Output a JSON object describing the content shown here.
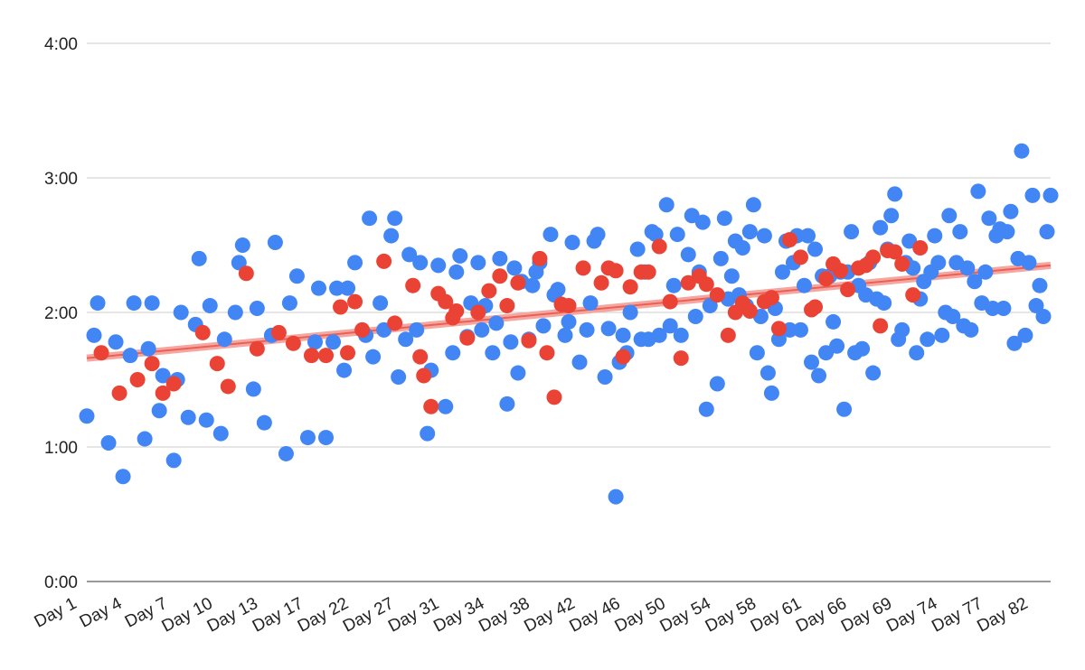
{
  "chart_data": {
    "type": "scatter",
    "title": "",
    "xlabel": "",
    "ylabel": "",
    "y_unit": "h:mm",
    "y_ticks": [
      "0:00",
      "1:00",
      "2:00",
      "3:00",
      "4:00"
    ],
    "y_tick_values": [
      0,
      1,
      2,
      3,
      4
    ],
    "ylim": [
      0,
      4
    ],
    "grid": true,
    "legend": "none",
    "x_tick_labels": [
      "Day 1",
      "Day 4",
      "Day 7",
      "Day 10",
      "Day 13",
      "Day 17",
      "Day 22",
      "Day 27",
      "Day 31",
      "Day 34",
      "Day 38",
      "Day 42",
      "Day 46",
      "Day 50",
      "Day 54",
      "Day 58",
      "Day 61",
      "Day 66",
      "Day 69",
      "Day 74",
      "Day 77",
      "Day 82"
    ],
    "x_count": 120,
    "series": [
      {
        "color": "#4285f4",
        "points": [
          [
            0,
            1.23
          ],
          [
            1,
            1.83
          ],
          [
            1.5,
            2.07
          ],
          [
            3,
            1.03
          ],
          [
            4,
            1.78
          ],
          [
            5,
            0.78
          ],
          [
            6,
            1.68
          ],
          [
            6.5,
            2.07
          ],
          [
            8,
            1.06
          ],
          [
            8.5,
            1.73
          ],
          [
            9,
            2.07
          ],
          [
            10,
            1.27
          ],
          [
            10.5,
            1.53
          ],
          [
            12,
            0.9
          ],
          [
            12.5,
            1.5
          ],
          [
            13,
            2.0
          ],
          [
            14,
            1.22
          ],
          [
            15,
            1.91
          ],
          [
            15.5,
            2.4
          ],
          [
            16.5,
            1.2
          ],
          [
            17,
            2.05
          ],
          [
            18.5,
            1.1
          ],
          [
            19,
            1.8
          ],
          [
            20.5,
            2.0
          ],
          [
            21,
            2.37
          ],
          [
            21.5,
            2.5
          ],
          [
            23,
            1.43
          ],
          [
            23.5,
            2.03
          ],
          [
            24.5,
            1.18
          ],
          [
            25.5,
            1.83
          ],
          [
            26,
            2.52
          ],
          [
            27.5,
            0.95
          ],
          [
            28,
            2.07
          ],
          [
            29,
            2.27
          ],
          [
            30.5,
            1.07
          ],
          [
            31.5,
            1.78
          ],
          [
            32,
            2.18
          ],
          [
            33,
            1.07
          ],
          [
            34,
            1.78
          ],
          [
            34.5,
            2.18
          ],
          [
            35.5,
            1.57
          ],
          [
            36,
            2.18
          ],
          [
            37,
            2.37
          ],
          [
            38.5,
            1.83
          ],
          [
            39,
            2.7
          ],
          [
            39.5,
            1.67
          ],
          [
            40.5,
            2.07
          ],
          [
            41,
            1.87
          ],
          [
            42,
            2.57
          ],
          [
            42.5,
            2.7
          ],
          [
            43,
            1.52
          ],
          [
            44,
            1.8
          ],
          [
            44.5,
            2.43
          ],
          [
            45.5,
            1.87
          ],
          [
            46,
            2.37
          ],
          [
            47,
            1.1
          ],
          [
            47.5,
            1.57
          ],
          [
            48.5,
            2.35
          ],
          [
            49.5,
            1.3
          ],
          [
            50.5,
            1.7
          ],
          [
            51,
            2.3
          ],
          [
            51.5,
            2.42
          ],
          [
            52.5,
            1.82
          ],
          [
            53,
            2.07
          ],
          [
            54,
            2.37
          ],
          [
            54.5,
            1.87
          ],
          [
            55,
            2.05
          ],
          [
            56,
            1.7
          ],
          [
            56.5,
            1.92
          ],
          [
            57,
            2.4
          ],
          [
            58,
            1.32
          ],
          [
            58.5,
            1.78
          ],
          [
            59,
            2.33
          ],
          [
            59.5,
            1.55
          ],
          [
            60,
            2.23
          ],
          [
            61,
            1.8
          ],
          [
            61.5,
            2.2
          ],
          [
            62,
            2.3
          ],
          [
            62.5,
            2.37
          ],
          [
            63,
            1.9
          ],
          [
            64,
            2.58
          ],
          [
            64.5,
            2.13
          ],
          [
            65,
            2.17
          ],
          [
            66,
            1.83
          ],
          [
            66.5,
            1.93
          ],
          [
            67,
            2.52
          ],
          [
            68,
            1.63
          ],
          [
            69,
            1.87
          ],
          [
            69.5,
            2.07
          ],
          [
            70,
            2.53
          ],
          [
            70.5,
            2.58
          ],
          [
            71.5,
            1.52
          ],
          [
            72,
            1.88
          ],
          [
            73,
            0.63
          ],
          [
            73.5,
            1.63
          ],
          [
            74,
            1.83
          ],
          [
            74.5,
            1.7
          ],
          [
            75,
            2.0
          ],
          [
            76,
            2.47
          ],
          [
            76.5,
            1.8
          ],
          [
            77,
            2.3
          ],
          [
            77.5,
            1.8
          ],
          [
            78,
            2.6
          ],
          [
            78.5,
            2.58
          ],
          [
            79,
            1.83
          ],
          [
            80,
            2.8
          ],
          [
            80.5,
            1.9
          ],
          [
            81,
            2.2
          ],
          [
            81.5,
            2.58
          ],
          [
            82,
            1.83
          ],
          [
            83,
            2.43
          ],
          [
            83.5,
            2.72
          ],
          [
            84,
            1.97
          ],
          [
            84.5,
            2.3
          ],
          [
            85,
            2.67
          ],
          [
            85.5,
            1.28
          ],
          [
            86,
            2.05
          ],
          [
            87,
            1.47
          ],
          [
            87.5,
            2.4
          ],
          [
            88,
            2.7
          ],
          [
            88.5,
            2.1
          ],
          [
            89,
            2.27
          ],
          [
            89.5,
            2.53
          ],
          [
            90,
            2.13
          ],
          [
            90.5,
            2.48
          ],
          [
            91,
            2.05
          ],
          [
            91.5,
            2.6
          ],
          [
            92,
            2.8
          ],
          [
            92.5,
            1.7
          ],
          [
            93,
            1.97
          ],
          [
            93.5,
            2.57
          ],
          [
            94,
            1.55
          ],
          [
            94.5,
            1.4
          ],
          [
            95,
            2.03
          ],
          [
            95.5,
            1.8
          ],
          [
            96,
            2.3
          ],
          [
            96.5,
            2.53
          ],
          [
            97,
            1.87
          ],
          [
            97.5,
            2.37
          ],
          [
            98,
            2.57
          ],
          [
            98.5,
            1.87
          ],
          [
            99,
            2.2
          ],
          [
            99.5,
            2.57
          ],
          [
            100,
            1.63
          ],
          [
            100.5,
            2.47
          ],
          [
            101,
            1.53
          ],
          [
            101.5,
            2.27
          ],
          [
            102,
            1.7
          ],
          [
            102.5,
            2.27
          ],
          [
            103,
            1.93
          ],
          [
            103.5,
            1.75
          ],
          [
            104,
            2.3
          ],
          [
            104.5,
            1.28
          ],
          [
            105,
            2.3
          ],
          [
            105.5,
            2.6
          ],
          [
            106,
            1.7
          ],
          [
            106.5,
            2.2
          ],
          [
            107,
            1.73
          ],
          [
            107.5,
            2.13
          ],
          [
            108,
            2.37
          ],
          [
            108.5,
            1.55
          ],
          [
            109,
            2.1
          ],
          [
            109.5,
            2.63
          ],
          [
            110,
            2.07
          ],
          [
            110.5,
            2.47
          ],
          [
            111,
            2.72
          ],
          [
            111.5,
            2.88
          ],
          [
            112,
            1.8
          ],
          [
            112.5,
            1.87
          ],
          [
            113,
            2.37
          ],
          [
            113.5,
            2.53
          ],
          [
            114,
            2.33
          ],
          [
            114.5,
            1.7
          ],
          [
            115,
            2.1
          ],
          [
            115.5,
            2.23
          ],
          [
            116,
            1.8
          ],
          [
            116.5,
            2.3
          ],
          [
            117,
            2.57
          ],
          [
            117.5,
            2.37
          ],
          [
            118,
            1.83
          ],
          [
            118.5,
            2.0
          ],
          [
            119,
            2.72
          ],
          [
            119.5,
            1.97
          ],
          [
            120,
            2.37
          ],
          [
            120.5,
            2.6
          ],
          [
            121,
            1.9
          ],
          [
            121.5,
            2.33
          ],
          [
            122,
            1.87
          ],
          [
            122.5,
            2.23
          ],
          [
            123,
            2.9
          ],
          [
            123.5,
            2.07
          ],
          [
            124,
            2.3
          ],
          [
            124.5,
            2.7
          ],
          [
            125,
            2.03
          ],
          [
            125.5,
            2.57
          ],
          [
            126,
            2.62
          ],
          [
            126.5,
            2.03
          ],
          [
            127,
            2.6
          ],
          [
            127.5,
            2.75
          ],
          [
            128,
            1.77
          ],
          [
            128.5,
            2.4
          ],
          [
            129,
            3.2
          ],
          [
            129.5,
            1.83
          ],
          [
            130,
            2.37
          ],
          [
            130.5,
            2.87
          ],
          [
            131,
            2.05
          ],
          [
            131.5,
            2.2
          ],
          [
            132,
            1.97
          ],
          [
            132.5,
            2.6
          ],
          [
            133,
            2.87
          ]
        ]
      },
      {
        "color": "#ea4335",
        "points": [
          [
            2,
            1.7
          ],
          [
            4.5,
            1.4
          ],
          [
            7,
            1.5
          ],
          [
            9,
            1.62
          ],
          [
            10.5,
            1.4
          ],
          [
            12,
            1.47
          ],
          [
            16,
            1.85
          ],
          [
            18,
            1.62
          ],
          [
            19.5,
            1.45
          ],
          [
            22,
            2.29
          ],
          [
            23.5,
            1.73
          ],
          [
            26.5,
            1.85
          ],
          [
            28.5,
            1.77
          ],
          [
            31,
            1.68
          ],
          [
            33,
            1.68
          ],
          [
            35,
            2.04
          ],
          [
            36,
            1.7
          ],
          [
            37,
            2.08
          ],
          [
            38,
            1.87
          ],
          [
            41,
            2.38
          ],
          [
            42.5,
            1.92
          ],
          [
            45,
            2.2
          ],
          [
            46,
            1.67
          ],
          [
            46.5,
            1.53
          ],
          [
            47.5,
            1.3
          ],
          [
            48.5,
            2.14
          ],
          [
            49.5,
            2.08
          ],
          [
            50.5,
            1.96
          ],
          [
            51,
            2.01
          ],
          [
            52.5,
            1.81
          ],
          [
            54,
            2.0
          ],
          [
            55.5,
            2.16
          ],
          [
            57,
            2.27
          ],
          [
            58,
            2.05
          ],
          [
            59.5,
            2.22
          ],
          [
            61,
            1.79
          ],
          [
            62.5,
            2.4
          ],
          [
            63.5,
            1.7
          ],
          [
            64.5,
            1.37
          ],
          [
            65.5,
            2.06
          ],
          [
            66.5,
            2.05
          ],
          [
            68.5,
            2.33
          ],
          [
            71,
            2.22
          ],
          [
            72,
            2.33
          ],
          [
            73,
            2.31
          ],
          [
            74,
            1.67
          ],
          [
            75,
            2.19
          ],
          [
            76.5,
            2.3
          ],
          [
            77.5,
            2.3
          ],
          [
            79,
            2.49
          ],
          [
            80.5,
            2.08
          ],
          [
            82,
            1.66
          ],
          [
            83,
            2.22
          ],
          [
            84.5,
            2.27
          ],
          [
            85.5,
            2.21
          ],
          [
            87,
            2.13
          ],
          [
            88.5,
            1.83
          ],
          [
            89.5,
            2.0
          ],
          [
            90.5,
            2.07
          ],
          [
            91.5,
            2.01
          ],
          [
            93.5,
            2.08
          ],
          [
            94.5,
            2.11
          ],
          [
            95.5,
            1.88
          ],
          [
            97,
            2.54
          ],
          [
            98.5,
            2.41
          ],
          [
            100,
            2.02
          ],
          [
            100.5,
            2.04
          ],
          [
            102,
            2.25
          ],
          [
            103,
            2.36
          ],
          [
            104,
            2.31
          ],
          [
            105,
            2.17
          ],
          [
            106.5,
            2.33
          ],
          [
            107.5,
            2.35
          ],
          [
            108.5,
            2.41
          ],
          [
            109.5,
            1.9
          ],
          [
            110.5,
            2.46
          ],
          [
            111.5,
            2.45
          ],
          [
            112.5,
            2.36
          ],
          [
            114,
            2.13
          ],
          [
            115,
            2.48
          ]
        ]
      }
    ],
    "trendline": {
      "color": "#ea4335",
      "start": 1.66,
      "end": 2.35
    }
  }
}
